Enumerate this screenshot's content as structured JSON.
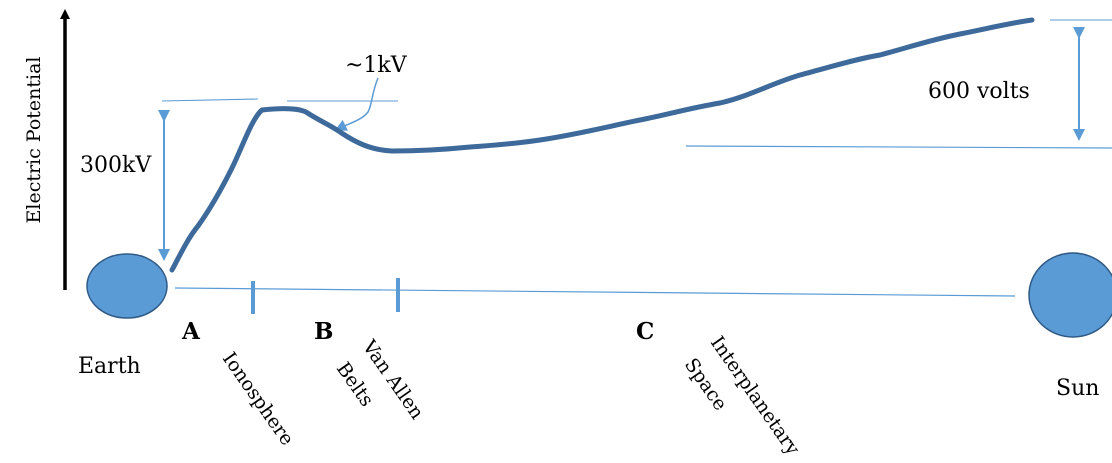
{
  "axis": {
    "y_label": "Electric Potential"
  },
  "annotations": {
    "kv_300": "300kV",
    "kv_1": "~1kV",
    "volts_600": "600 volts"
  },
  "bodies": {
    "earth": "Earth",
    "sun": "Sun"
  },
  "regions": [
    {
      "letter": "A",
      "name_lines": [
        "Ionosphere"
      ]
    },
    {
      "letter": "B",
      "name_lines": [
        "Van Allen",
        "Belts"
      ]
    },
    {
      "letter": "C",
      "name_lines": [
        "Interplanetary",
        "Space"
      ]
    }
  ],
  "colors": {
    "curve": "#3d6a9a",
    "arrow": "#5b9bd5",
    "body_fill": "#5b9bd5",
    "body_stroke": "#2f5a86",
    "axis": "#000000"
  }
}
